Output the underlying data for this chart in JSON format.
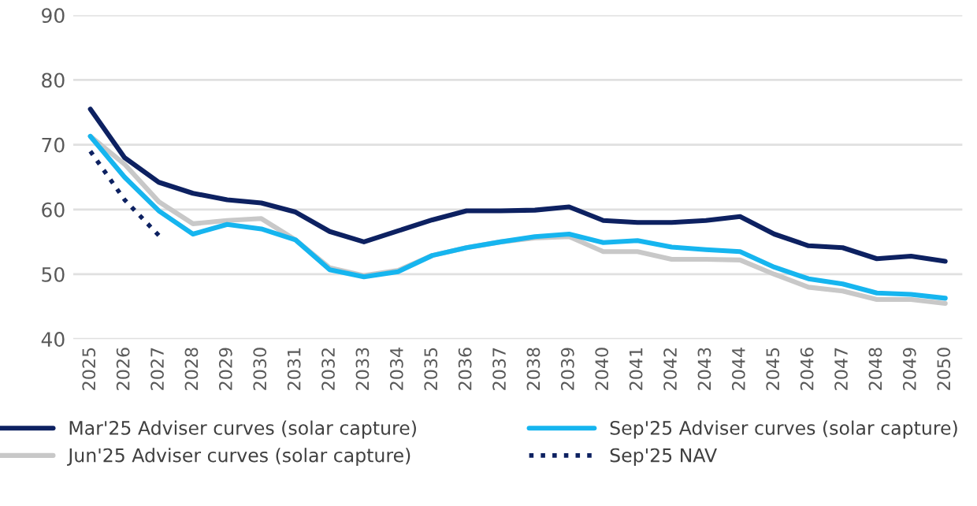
{
  "chart_data": {
    "type": "line",
    "categories": [
      "2025",
      "2026",
      "2027",
      "2028",
      "2029",
      "2030",
      "2031",
      "2032",
      "2033",
      "2034",
      "2035",
      "2036",
      "2037",
      "2038",
      "2039",
      "2040",
      "2041",
      "2042",
      "2043",
      "2044",
      "2045",
      "2046",
      "2047",
      "2048",
      "2049",
      "2050"
    ],
    "series": [
      {
        "name": "Mar'25 Adviser curves (solar capture)",
        "color": "#0d2161",
        "line_style": "solid",
        "values": [
          75.5,
          68,
          64.2,
          62.5,
          61.5,
          61,
          59.6,
          56.6,
          55,
          56.7,
          58.4,
          59.8,
          59.8,
          59.9,
          60.4,
          58.3,
          58,
          58,
          58.3,
          58.9,
          56.2,
          54.4,
          54.1,
          52.4,
          52.8,
          52
        ]
      },
      {
        "name": "Jun'25 Adviser curves (solar capture)",
        "color": "#c8c8c8",
        "line_style": "solid",
        "values": [
          71.3,
          67,
          61.2,
          57.8,
          58.3,
          58.6,
          55.3,
          51,
          49.8,
          50.6,
          52.9,
          54.1,
          55,
          55.6,
          55.8,
          53.5,
          53.5,
          52.3,
          52.3,
          52.2,
          50,
          48,
          47.4,
          46.1,
          46.1,
          45.5
        ]
      },
      {
        "name": "Sep'25 Adviser curves (solar capture)",
        "color": "#16b5ef",
        "line_style": "solid",
        "values": [
          71.3,
          65,
          59.8,
          56.2,
          57.7,
          57,
          55.3,
          50.7,
          49.6,
          50.4,
          52.9,
          54.1,
          55,
          55.8,
          56.2,
          54.9,
          55.2,
          54.2,
          53.8,
          53.5,
          51.1,
          49.3,
          48.5,
          47.1,
          46.9,
          46.3
        ]
      },
      {
        "name": "Sep'25 NAV",
        "color": "#0d2161",
        "line_style": "dotted",
        "values": [
          69,
          61.5,
          56,
          null,
          null,
          null,
          null,
          null,
          null,
          null,
          null,
          null,
          null,
          null,
          null,
          null,
          null,
          null,
          null,
          null,
          null,
          null,
          null,
          null,
          null,
          null
        ]
      }
    ],
    "ylim": [
      40,
      90
    ],
    "yticks": [
      40,
      50,
      60,
      70,
      80,
      90
    ],
    "grid": "y",
    "legend": "bottom",
    "marker": "none"
  }
}
